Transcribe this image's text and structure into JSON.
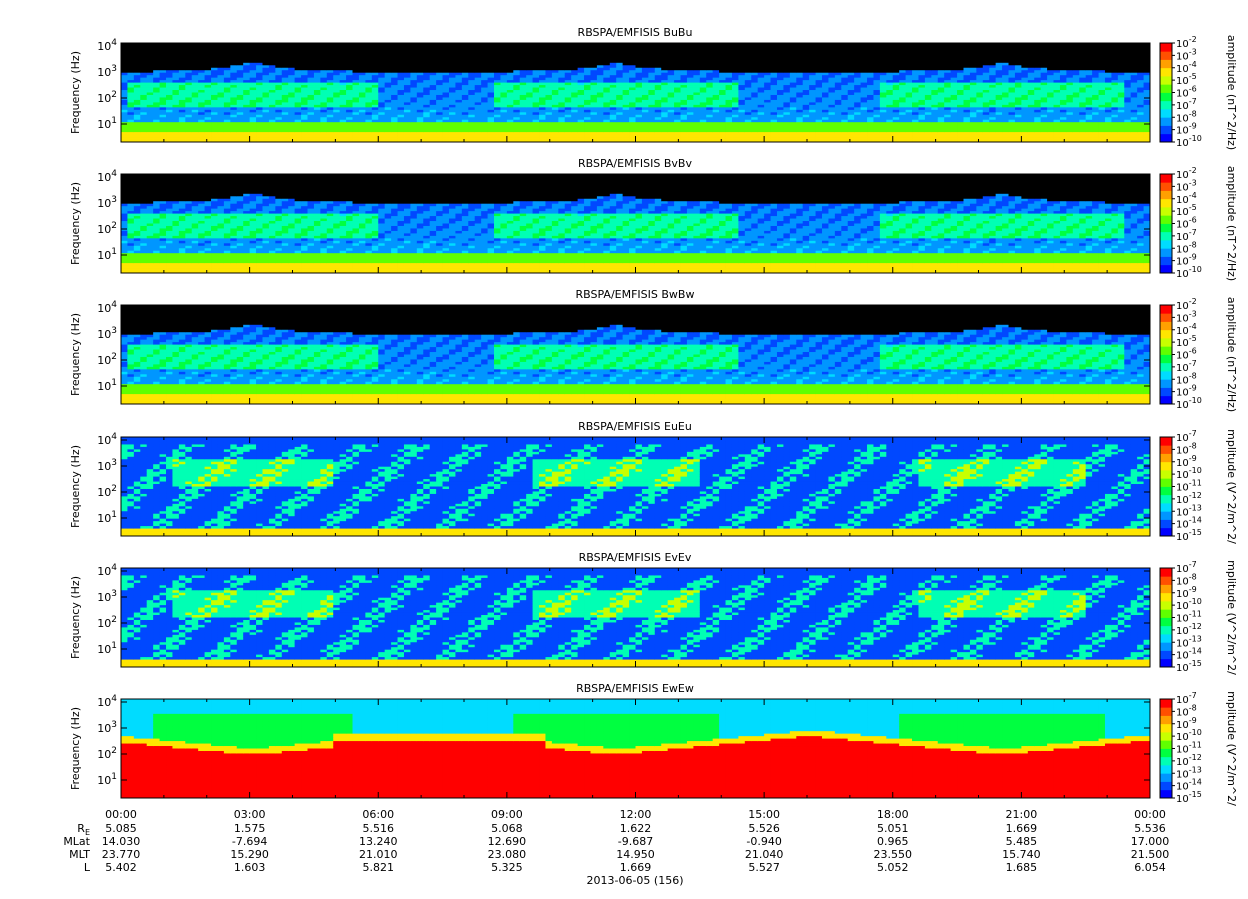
{
  "figure": {
    "date_label": "2013-06-05 (156)"
  },
  "colormap": [
    "#0000ff",
    "#0048ff",
    "#0096ff",
    "#00dcff",
    "#00ffb4",
    "#00ff40",
    "#60ff00",
    "#c8ff00",
    "#ffe600",
    "#ffa000",
    "#ff5000",
    "#ff0000"
  ],
  "chart_data": [
    {
      "type": "heatmap",
      "title": "RBSPA/EMFISIS  BuBu",
      "ylabel": "Frequency (Hz)",
      "colorbar_label": "amplitude (nT^2/Hz)",
      "colorbar_min_exp": -10,
      "colorbar_max_exp": -2,
      "y_scale": "log",
      "y_ticks": [
        "10^1",
        "10^2",
        "10^3",
        "10^4"
      ]
    },
    {
      "type": "heatmap",
      "title": "RBSPA/EMFISIS  BvBv",
      "ylabel": "Frequency (Hz)",
      "colorbar_label": "amplitude (nT^2/Hz)",
      "colorbar_min_exp": -10,
      "colorbar_max_exp": -2,
      "y_scale": "log",
      "y_ticks": [
        "10^1",
        "10^2",
        "10^3",
        "10^4"
      ]
    },
    {
      "type": "heatmap",
      "title": "RBSPA/EMFISIS  BwBw",
      "ylabel": "Frequency (Hz)",
      "colorbar_label": "amplitude (nT^2/Hz)",
      "colorbar_min_exp": -10,
      "colorbar_max_exp": -2,
      "y_scale": "log",
      "y_ticks": [
        "10^1",
        "10^2",
        "10^3",
        "10^4"
      ]
    },
    {
      "type": "heatmap",
      "title": "RBSPA/EMFISIS  EuEu",
      "ylabel": "Frequency (Hz)",
      "colorbar_label": "mplitude (V^2/m^2/",
      "colorbar_min_exp": -15,
      "colorbar_max_exp": -7,
      "y_scale": "log",
      "y_ticks": [
        "10^1",
        "10^2",
        "10^3",
        "10^4"
      ]
    },
    {
      "type": "heatmap",
      "title": "RBSPA/EMFISIS  EvEv",
      "ylabel": "Frequency (Hz)",
      "colorbar_label": "mplitude (V^2/m^2/",
      "colorbar_min_exp": -15,
      "colorbar_max_exp": -7,
      "y_scale": "log",
      "y_ticks": [
        "10^1",
        "10^2",
        "10^3",
        "10^4"
      ]
    },
    {
      "type": "heatmap",
      "title": "RBSPA/EMFISIS  EwEw",
      "ylabel": "Frequency (Hz)",
      "colorbar_label": "mplitude (V^2/m^2/",
      "colorbar_min_exp": -15,
      "colorbar_max_exp": -7,
      "y_scale": "log",
      "y_ticks": [
        "10^1",
        "10^2",
        "10^3",
        "10^4"
      ]
    }
  ],
  "x_axis": {
    "time_labels": [
      "00:00",
      "03:00",
      "06:00",
      "09:00",
      "12:00",
      "15:00",
      "18:00",
      "21:00",
      "00:00"
    ],
    "rows": [
      {
        "label": "R",
        "label_sub": "E",
        "values": [
          "5.085",
          "1.575",
          "5.516",
          "5.068",
          "1.622",
          "5.526",
          "5.051",
          "1.669",
          "5.536"
        ]
      },
      {
        "label": "MLat",
        "label_sub": "",
        "values": [
          "14.030",
          "-7.694",
          "13.240",
          "12.690",
          "-9.687",
          "-0.940",
          "0.965",
          "5.485",
          "17.000"
        ]
      },
      {
        "label": "MLT",
        "label_sub": "",
        "values": [
          "23.770",
          "15.290",
          "21.010",
          "23.080",
          "14.950",
          "21.040",
          "23.550",
          "15.740",
          "21.500"
        ]
      },
      {
        "label": "L",
        "label_sub": "",
        "values": [
          "5.402",
          "1.603",
          "5.821",
          "5.325",
          "1.669",
          "5.527",
          "5.052",
          "1.685",
          "6.054"
        ]
      }
    ]
  }
}
